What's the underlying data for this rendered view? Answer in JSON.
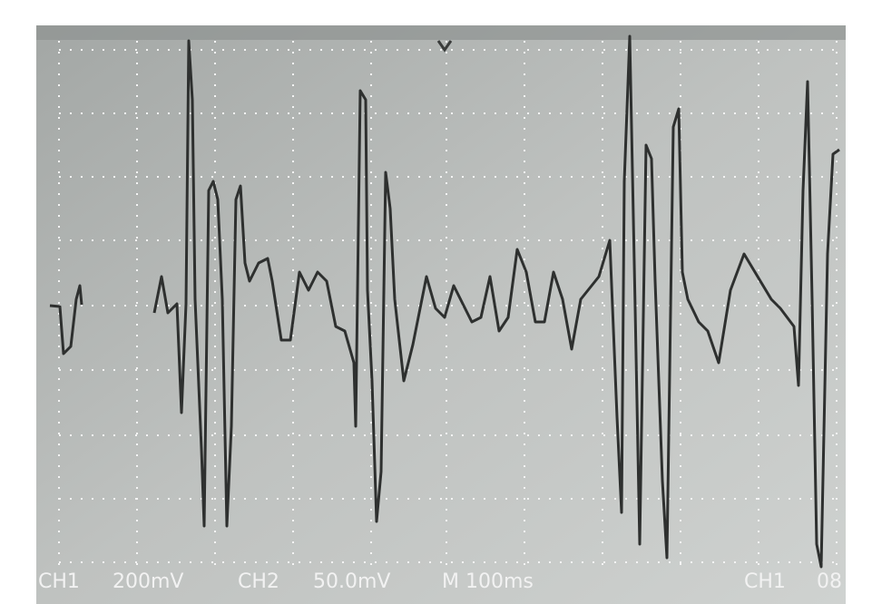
{
  "status_bar": {
    "ch1_label": "CH1",
    "ch1_scale": "200mV",
    "ch2_label": "CH2",
    "ch2_scale": "50.0mV",
    "timebase": "M 100ms",
    "trigger_channel": "CH1",
    "trigger_value": "08"
  }
}
